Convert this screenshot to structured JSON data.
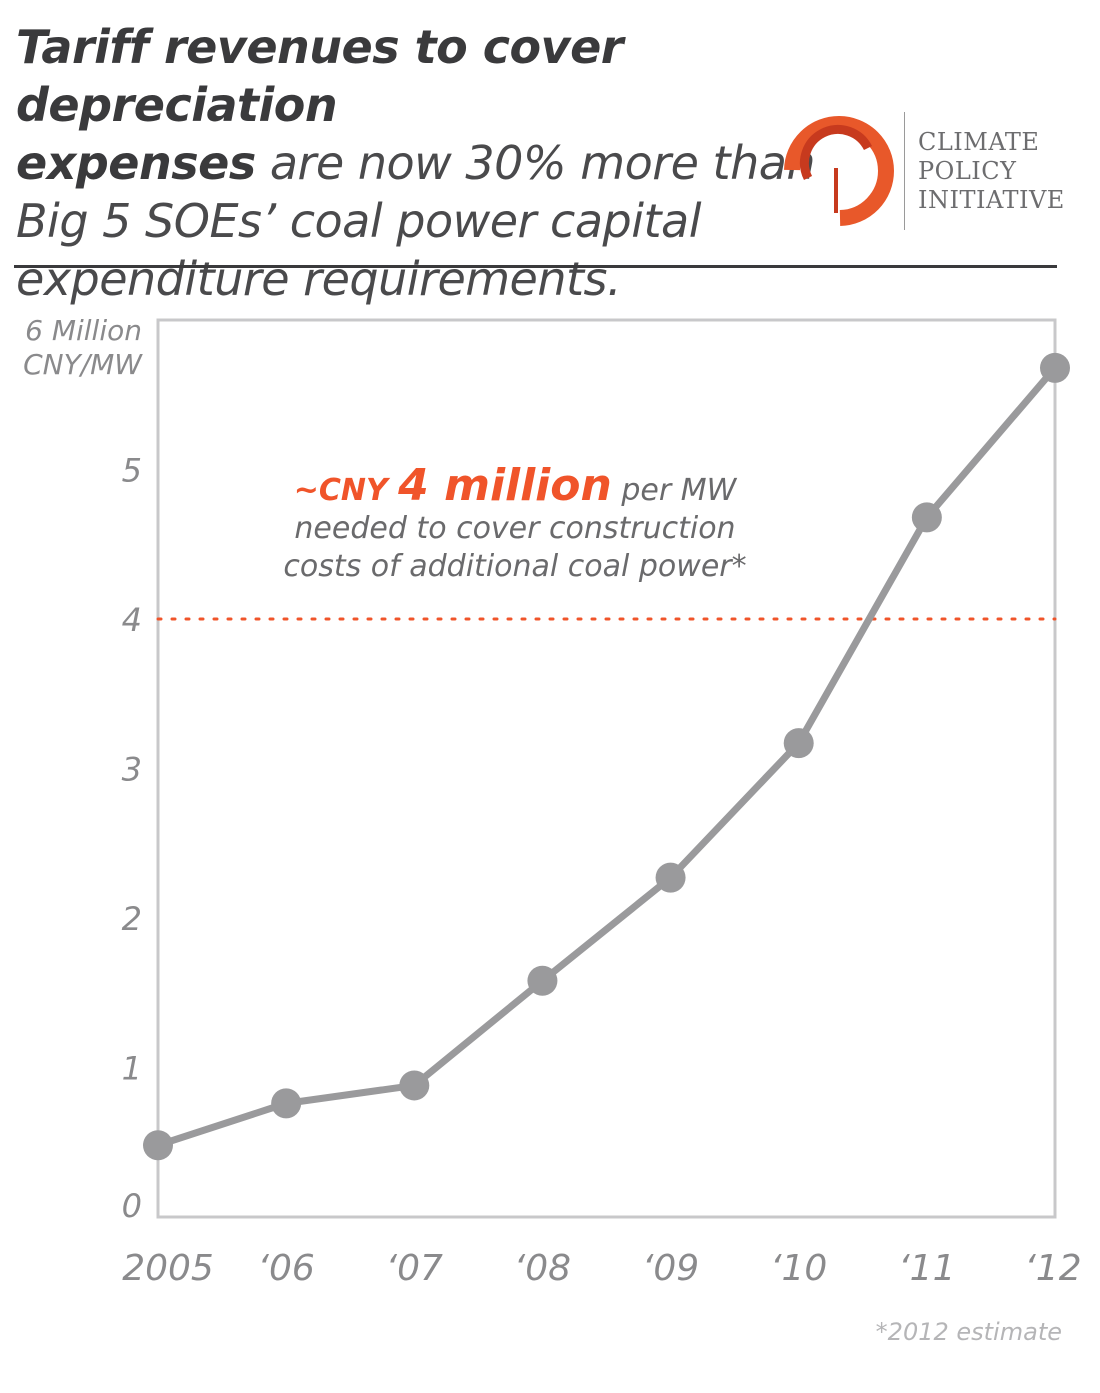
{
  "header": {
    "title_bold_1": "Tariff  revenues to cover depreciation",
    "title_bold_2": "expenses",
    "title_rest_1": " are now 30% more than",
    "title_rest_2": "Big 5 SOEs’ coal power capital",
    "title_rest_3": "expenditure requirements."
  },
  "logo": {
    "line1": "CLIMATE",
    "line2": "POLICY",
    "line3": "INITIATIVE",
    "colors": {
      "outer": "#e8582a",
      "inner": "#c73a1e",
      "text": "#6d6d6f"
    }
  },
  "chart_data": {
    "type": "line",
    "categories": [
      "2005",
      "‘06",
      "‘07",
      "‘08",
      "‘09",
      "‘10",
      "‘11",
      "‘12"
    ],
    "series": [
      {
        "values": [
          0.48,
          0.76,
          0.88,
          1.58,
          2.27,
          3.17,
          4.68,
          5.68
        ],
        "color": "#9a9a9c"
      }
    ],
    "ylim": [
      0,
      6
    ],
    "yticks": [
      0,
      1,
      2,
      3,
      4,
      5
    ],
    "y_top_label_1": "6 Million",
    "y_top_label_2": "CNY/MW",
    "reference_line": {
      "value": 4,
      "color": "#f0542a",
      "style": "dotted"
    },
    "annotation": {
      "prefix": "~CNY ",
      "highlight": "4 million",
      "suffix": " per MW",
      "line2": "needed to cover construction",
      "line3": "costs of additional coal power*",
      "accent_color": "#f0542a"
    },
    "grid": false
  },
  "footnote": "*2012 estimate"
}
